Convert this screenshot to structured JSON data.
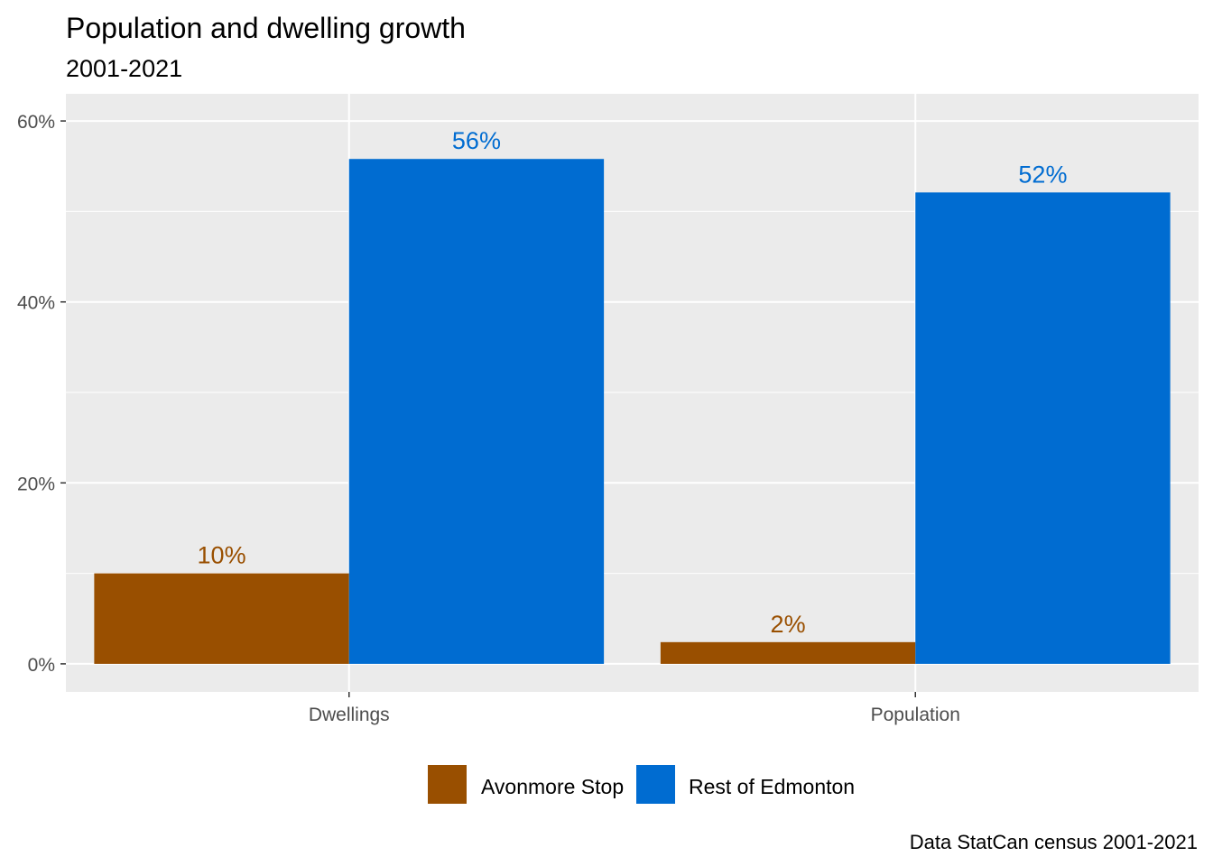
{
  "chart_data": {
    "type": "bar",
    "title": "Population and dwelling growth",
    "subtitle": "2001-2021",
    "caption": "Data StatCan census 2001-2021",
    "xlabel": "",
    "ylabel": "",
    "categories": [
      "Dwellings",
      "Population"
    ],
    "series": [
      {
        "name": "Avonmore Stop",
        "color": "#994F00",
        "values": [
          10.0,
          2.4
        ],
        "labels": [
          "10%",
          "2%"
        ]
      },
      {
        "name": "Rest of Edmonton",
        "color": "#006CD1",
        "values": [
          55.8,
          52.1
        ],
        "labels": [
          "56%",
          "52%"
        ]
      }
    ],
    "yticks": [
      0,
      20,
      40,
      60
    ],
    "ytick_labels": [
      "0%",
      "20%",
      "40%",
      "60%"
    ],
    "ylim": [
      -3.1,
      63
    ],
    "grid": true,
    "legend_position": "bottom",
    "panel_background": "#EBEBEB"
  }
}
